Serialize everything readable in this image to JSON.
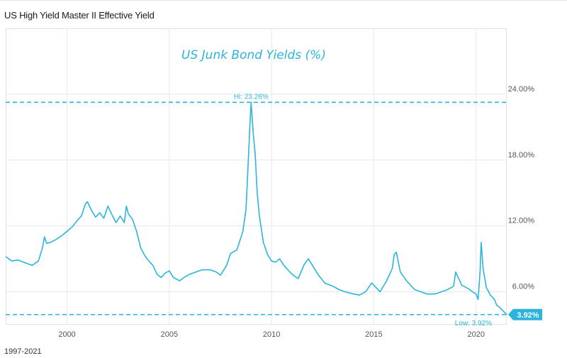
{
  "header": {
    "title": "US High Yield Master II Effective Yield"
  },
  "footer": {
    "range_label": "1997-2021"
  },
  "colors": {
    "line": "#2bb5dc",
    "badge_bg": "#2bb5dc",
    "badge_text": "#ffffff",
    "grid": "#e8e8e8",
    "tick_text": "#555555"
  },
  "chart_data": {
    "type": "line",
    "title": "US Junk Bond Yields (%)",
    "xlabel": "",
    "ylabel": "",
    "x_ticks": [
      "2000",
      "2005",
      "2010",
      "2015",
      "2020"
    ],
    "y_ticks": [
      "6.00%",
      "12.00%",
      "18.00%",
      "24.00%"
    ],
    "xlim": [
      1997.0,
      2021.5
    ],
    "ylim": [
      3.0,
      30.0
    ],
    "grid": true,
    "high_label": "Hi: 23.26%",
    "high_value": 23.26,
    "low_label": "Low: 3.92%",
    "low_value": 3.92,
    "last_value_label": "3.92%",
    "last_value": 3.92,
    "series": [
      {
        "x": [
          1997.0,
          1997.3,
          1997.6,
          1998.0,
          1998.3,
          1998.6,
          1998.8,
          1998.9,
          1999.0,
          1999.2,
          1999.5,
          1999.8,
          2000.0,
          2000.3,
          2000.5,
          2000.7,
          2000.9,
          2001.0,
          2001.2,
          2001.4,
          2001.6,
          2001.8,
          2002.0,
          2002.2,
          2002.4,
          2002.6,
          2002.8,
          2002.9,
          2003.0,
          2003.2,
          2003.4,
          2003.6,
          2003.8,
          2004.0,
          2004.2,
          2004.4,
          2004.6,
          2004.8,
          2005.0,
          2005.2,
          2005.5,
          2005.8,
          2006.0,
          2006.3,
          2006.6,
          2007.0,
          2007.3,
          2007.5,
          2007.8,
          2008.0,
          2008.3,
          2008.6,
          2008.75,
          2008.85,
          2008.95,
          2009.0,
          2009.1,
          2009.2,
          2009.3,
          2009.4,
          2009.6,
          2009.8,
          2010.0,
          2010.2,
          2010.4,
          2010.6,
          2010.8,
          2011.0,
          2011.3,
          2011.6,
          2011.8,
          2011.9,
          2012.0,
          2012.3,
          2012.6,
          2013.0,
          2013.3,
          2013.6,
          2014.0,
          2014.3,
          2014.6,
          2014.9,
          2015.0,
          2015.3,
          2015.6,
          2015.9,
          2016.0,
          2016.1,
          2016.3,
          2016.6,
          2017.0,
          2017.3,
          2017.6,
          2018.0,
          2018.3,
          2018.6,
          2018.9,
          2019.0,
          2019.3,
          2019.6,
          2019.9,
          2020.0,
          2020.1,
          2020.2,
          2020.25,
          2020.3,
          2020.35,
          2020.4,
          2020.5,
          2020.7,
          2020.9,
          2021.0,
          2021.2,
          2021.5
        ],
        "y": [
          9.2,
          8.8,
          8.9,
          8.6,
          8.4,
          8.8,
          10.0,
          11.0,
          10.4,
          10.5,
          10.8,
          11.2,
          11.5,
          12.0,
          12.5,
          12.9,
          14.0,
          14.2,
          13.4,
          12.8,
          13.2,
          12.7,
          13.8,
          13.0,
          12.3,
          12.9,
          12.3,
          13.8,
          13.1,
          12.6,
          11.5,
          10.0,
          9.3,
          8.8,
          8.4,
          7.6,
          7.3,
          7.7,
          7.9,
          7.3,
          7.0,
          7.4,
          7.6,
          7.8,
          8.0,
          8.0,
          7.8,
          7.5,
          8.4,
          9.5,
          9.8,
          11.5,
          13.5,
          17.5,
          21.5,
          23.26,
          20.5,
          18.5,
          15.0,
          13.0,
          10.5,
          9.4,
          8.8,
          8.7,
          9.0,
          8.4,
          8.0,
          7.6,
          7.2,
          8.5,
          9.0,
          8.7,
          8.4,
          7.5,
          6.8,
          6.5,
          6.2,
          6.0,
          5.8,
          5.7,
          6.0,
          6.8,
          6.6,
          6.0,
          6.9,
          8.1,
          9.4,
          9.6,
          7.8,
          7.0,
          6.2,
          6.0,
          5.8,
          5.8,
          6.0,
          6.2,
          6.5,
          7.8,
          6.6,
          6.3,
          5.9,
          5.8,
          5.3,
          8.0,
          10.5,
          9.2,
          8.0,
          7.5,
          6.4,
          5.7,
          5.3,
          4.8,
          4.5,
          3.92
        ]
      }
    ]
  }
}
